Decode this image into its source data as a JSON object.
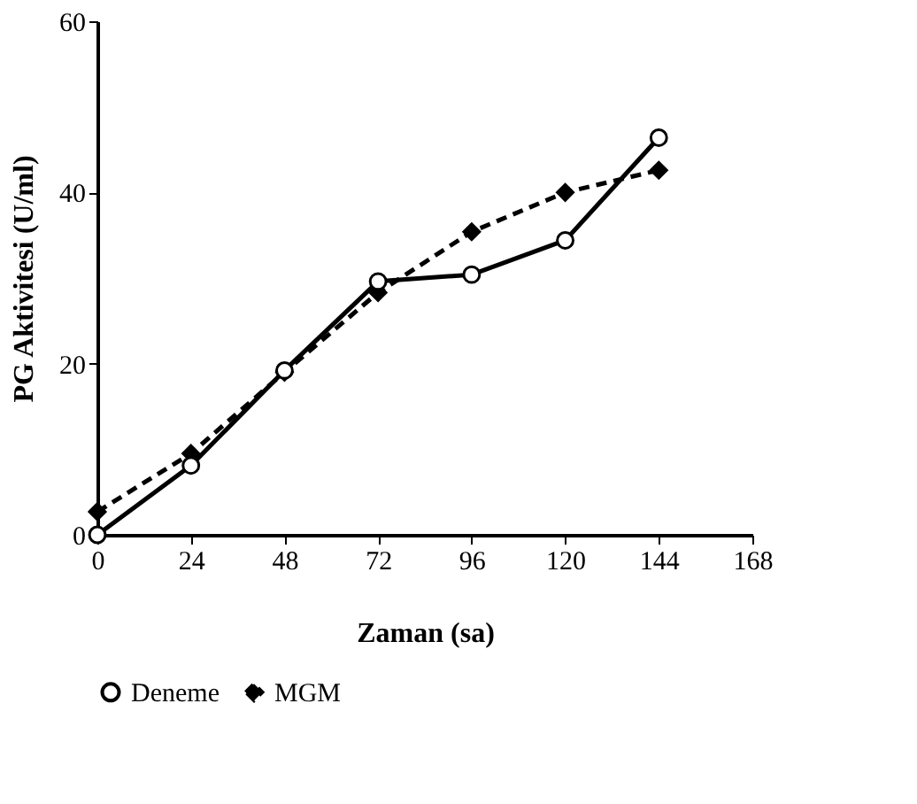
{
  "chart_data": {
    "type": "line",
    "xlabel": "Zaman (sa)",
    "ylabel": "PG Aktivitesi (U/ml)",
    "x": [
      0,
      24,
      48,
      72,
      96,
      120,
      144
    ],
    "series": [
      {
        "name": "Deneme",
        "color": "#000000",
        "marker": "circle",
        "line_style": "solid",
        "values": [
          0,
          8.1,
          19.2,
          29.6,
          30.4,
          34.4,
          46.4
        ]
      },
      {
        "name": "MGM",
        "color": "#000000",
        "marker": "diamond",
        "line_style": "dashed",
        "values": [
          2.7,
          9.5,
          19,
          28.3,
          35.4,
          40,
          42.6
        ]
      }
    ],
    "xlim": [
      0,
      168
    ],
    "xticks": [
      0,
      24,
      48,
      72,
      96,
      120,
      144,
      168
    ],
    "ylim": [
      0,
      60
    ],
    "yticks": [
      0,
      20,
      40,
      60
    ],
    "grid": false,
    "legend": "bottom"
  }
}
